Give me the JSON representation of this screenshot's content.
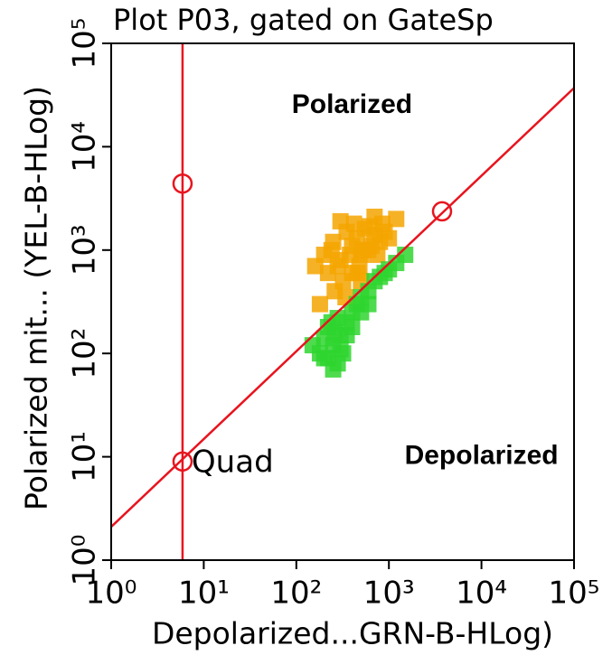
{
  "chart_data": {
    "type": "scatter",
    "title": "Plot P03, gated on GateSp",
    "x_label": "Depolarized...GRN-B-HLog)",
    "y_label": "Polarized mit... (YEL-B-HLog)",
    "log_x": true,
    "log_y": true,
    "xlim": [
      1,
      100000
    ],
    "ylim": [
      1,
      100000
    ],
    "xticks": [
      {
        "value": 1,
        "label": "10⁰"
      },
      {
        "value": 10,
        "label": "10¹"
      },
      {
        "value": 100,
        "label": "10²"
      },
      {
        "value": 1000,
        "label": "10³"
      },
      {
        "value": 10000,
        "label": "10⁴"
      },
      {
        "value": 100000,
        "label": "10⁵"
      }
    ],
    "yticks": [
      {
        "value": 1,
        "label": "10⁰"
      },
      {
        "value": 10,
        "label": "10¹"
      },
      {
        "value": 100,
        "label": "10²"
      },
      {
        "value": 1000,
        "label": "10³"
      },
      {
        "value": 10000,
        "label": "10⁴"
      },
      {
        "value": 100000,
        "label": "10⁵"
      }
    ],
    "series": [
      {
        "color": "#f5a500",
        "x": [
          200,
          250,
          300,
          350,
          400,
          450,
          500,
          600,
          700,
          800,
          220,
          280,
          320,
          380,
          420,
          480,
          550,
          650,
          750,
          900,
          1000,
          180,
          260,
          340,
          460,
          520,
          620,
          300,
          400,
          500,
          1200,
          160,
          240,
          700,
          850
        ],
        "values": [
          900,
          1200,
          800,
          1500,
          1100,
          1300,
          900,
          1000,
          1400,
          1200,
          600,
          700,
          500,
          900,
          1800,
          700,
          1600,
          1100,
          900,
          1500,
          1300,
          300,
          400,
          350,
          600,
          1000,
          1700,
          1900,
          600,
          500,
          2000,
          700,
          1000,
          2100,
          1800
        ]
      },
      {
        "color": "#2fd52f",
        "x": [
          150,
          180,
          200,
          220,
          250,
          280,
          300,
          350,
          400,
          450,
          500,
          600,
          700,
          800,
          1000,
          1200,
          250,
          300,
          350,
          400,
          500,
          600,
          220,
          280,
          320,
          260,
          240,
          200,
          900,
          1500
        ],
        "values": [
          120,
          100,
          140,
          90,
          70,
          80,
          150,
          200,
          250,
          300,
          350,
          400,
          500,
          550,
          650,
          750,
          120,
          110,
          150,
          180,
          250,
          300,
          180,
          220,
          100,
          160,
          200,
          90,
          600,
          900
        ]
      }
    ],
    "gate": {
      "label": "Quad",
      "color": "#e8141e",
      "vertical_x": 5.9,
      "line": {
        "x": [
          1,
          100000
        ],
        "y": [
          2.1,
          37000
        ]
      },
      "handles": {
        "x": [
          5.9,
          5.9,
          3750
        ],
        "y": [
          4400,
          9,
          2370
        ]
      }
    },
    "regions": [
      {
        "label": "Polarized",
        "x": 400,
        "y": 25000
      },
      {
        "label": "Depolarized",
        "x": 10000,
        "y": 10
      }
    ]
  }
}
